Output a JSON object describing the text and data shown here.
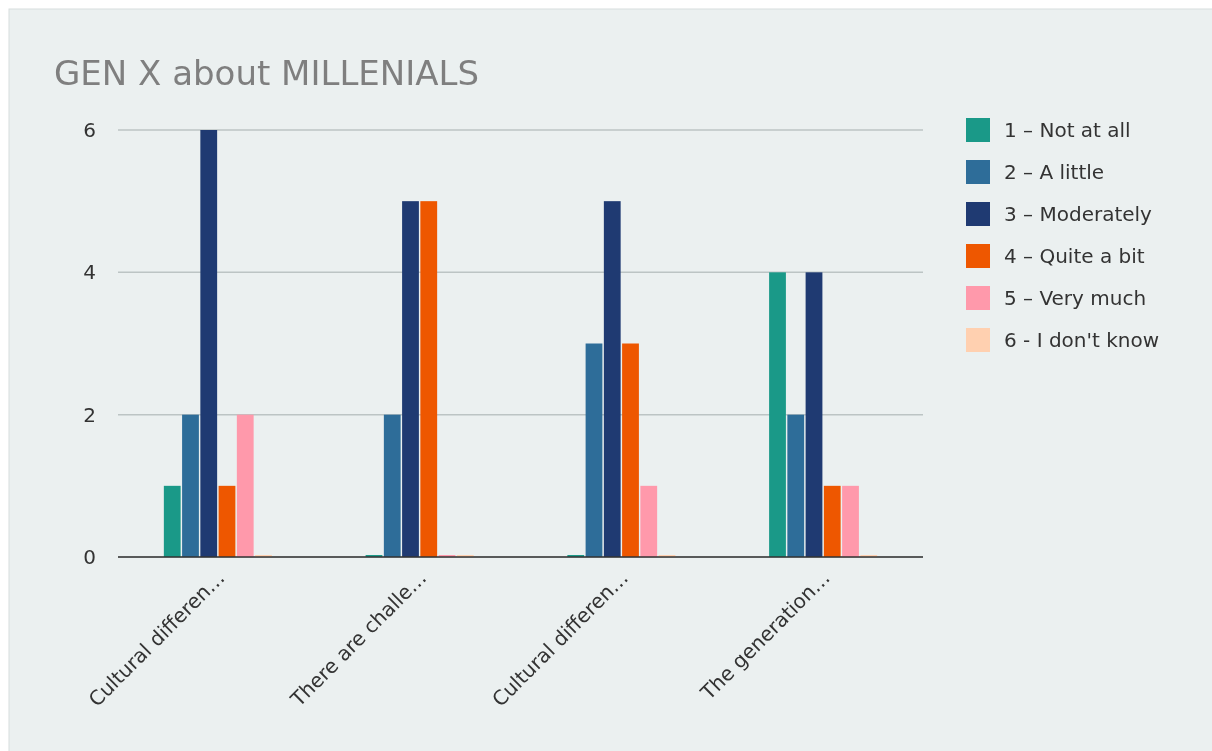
{
  "chart_data": {
    "type": "bar",
    "title": "GEN X about MILLENIALS",
    "categories": [
      "Cultural differen…",
      "There are challe…",
      "Cultural differen…",
      "The generation…"
    ],
    "series": [
      {
        "name": "1 – Not at all",
        "color": "#1a9988",
        "values": [
          1,
          0,
          0,
          4
        ]
      },
      {
        "name": "2 – A little",
        "color": "#2e6d99",
        "values": [
          2,
          2,
          3,
          2
        ]
      },
      {
        "name": "3 – Moderately",
        "color": "#1f3a72",
        "values": [
          6,
          5,
          5,
          4
        ]
      },
      {
        "name": "4 – Quite a bit",
        "color": "#ee5700",
        "values": [
          1,
          5,
          3,
          1
        ]
      },
      {
        "name": "5 – Very much",
        "color": "#ff99ab",
        "values": [
          2,
          0,
          1,
          1
        ]
      },
      {
        "name": "6 - I don't know",
        "color": "#ffd0b0",
        "values": [
          0,
          0,
          0,
          0
        ]
      }
    ],
    "ylim": [
      0,
      6
    ],
    "yticks": [
      0,
      2,
      4,
      6
    ],
    "grid": "y",
    "legend": "top right"
  }
}
